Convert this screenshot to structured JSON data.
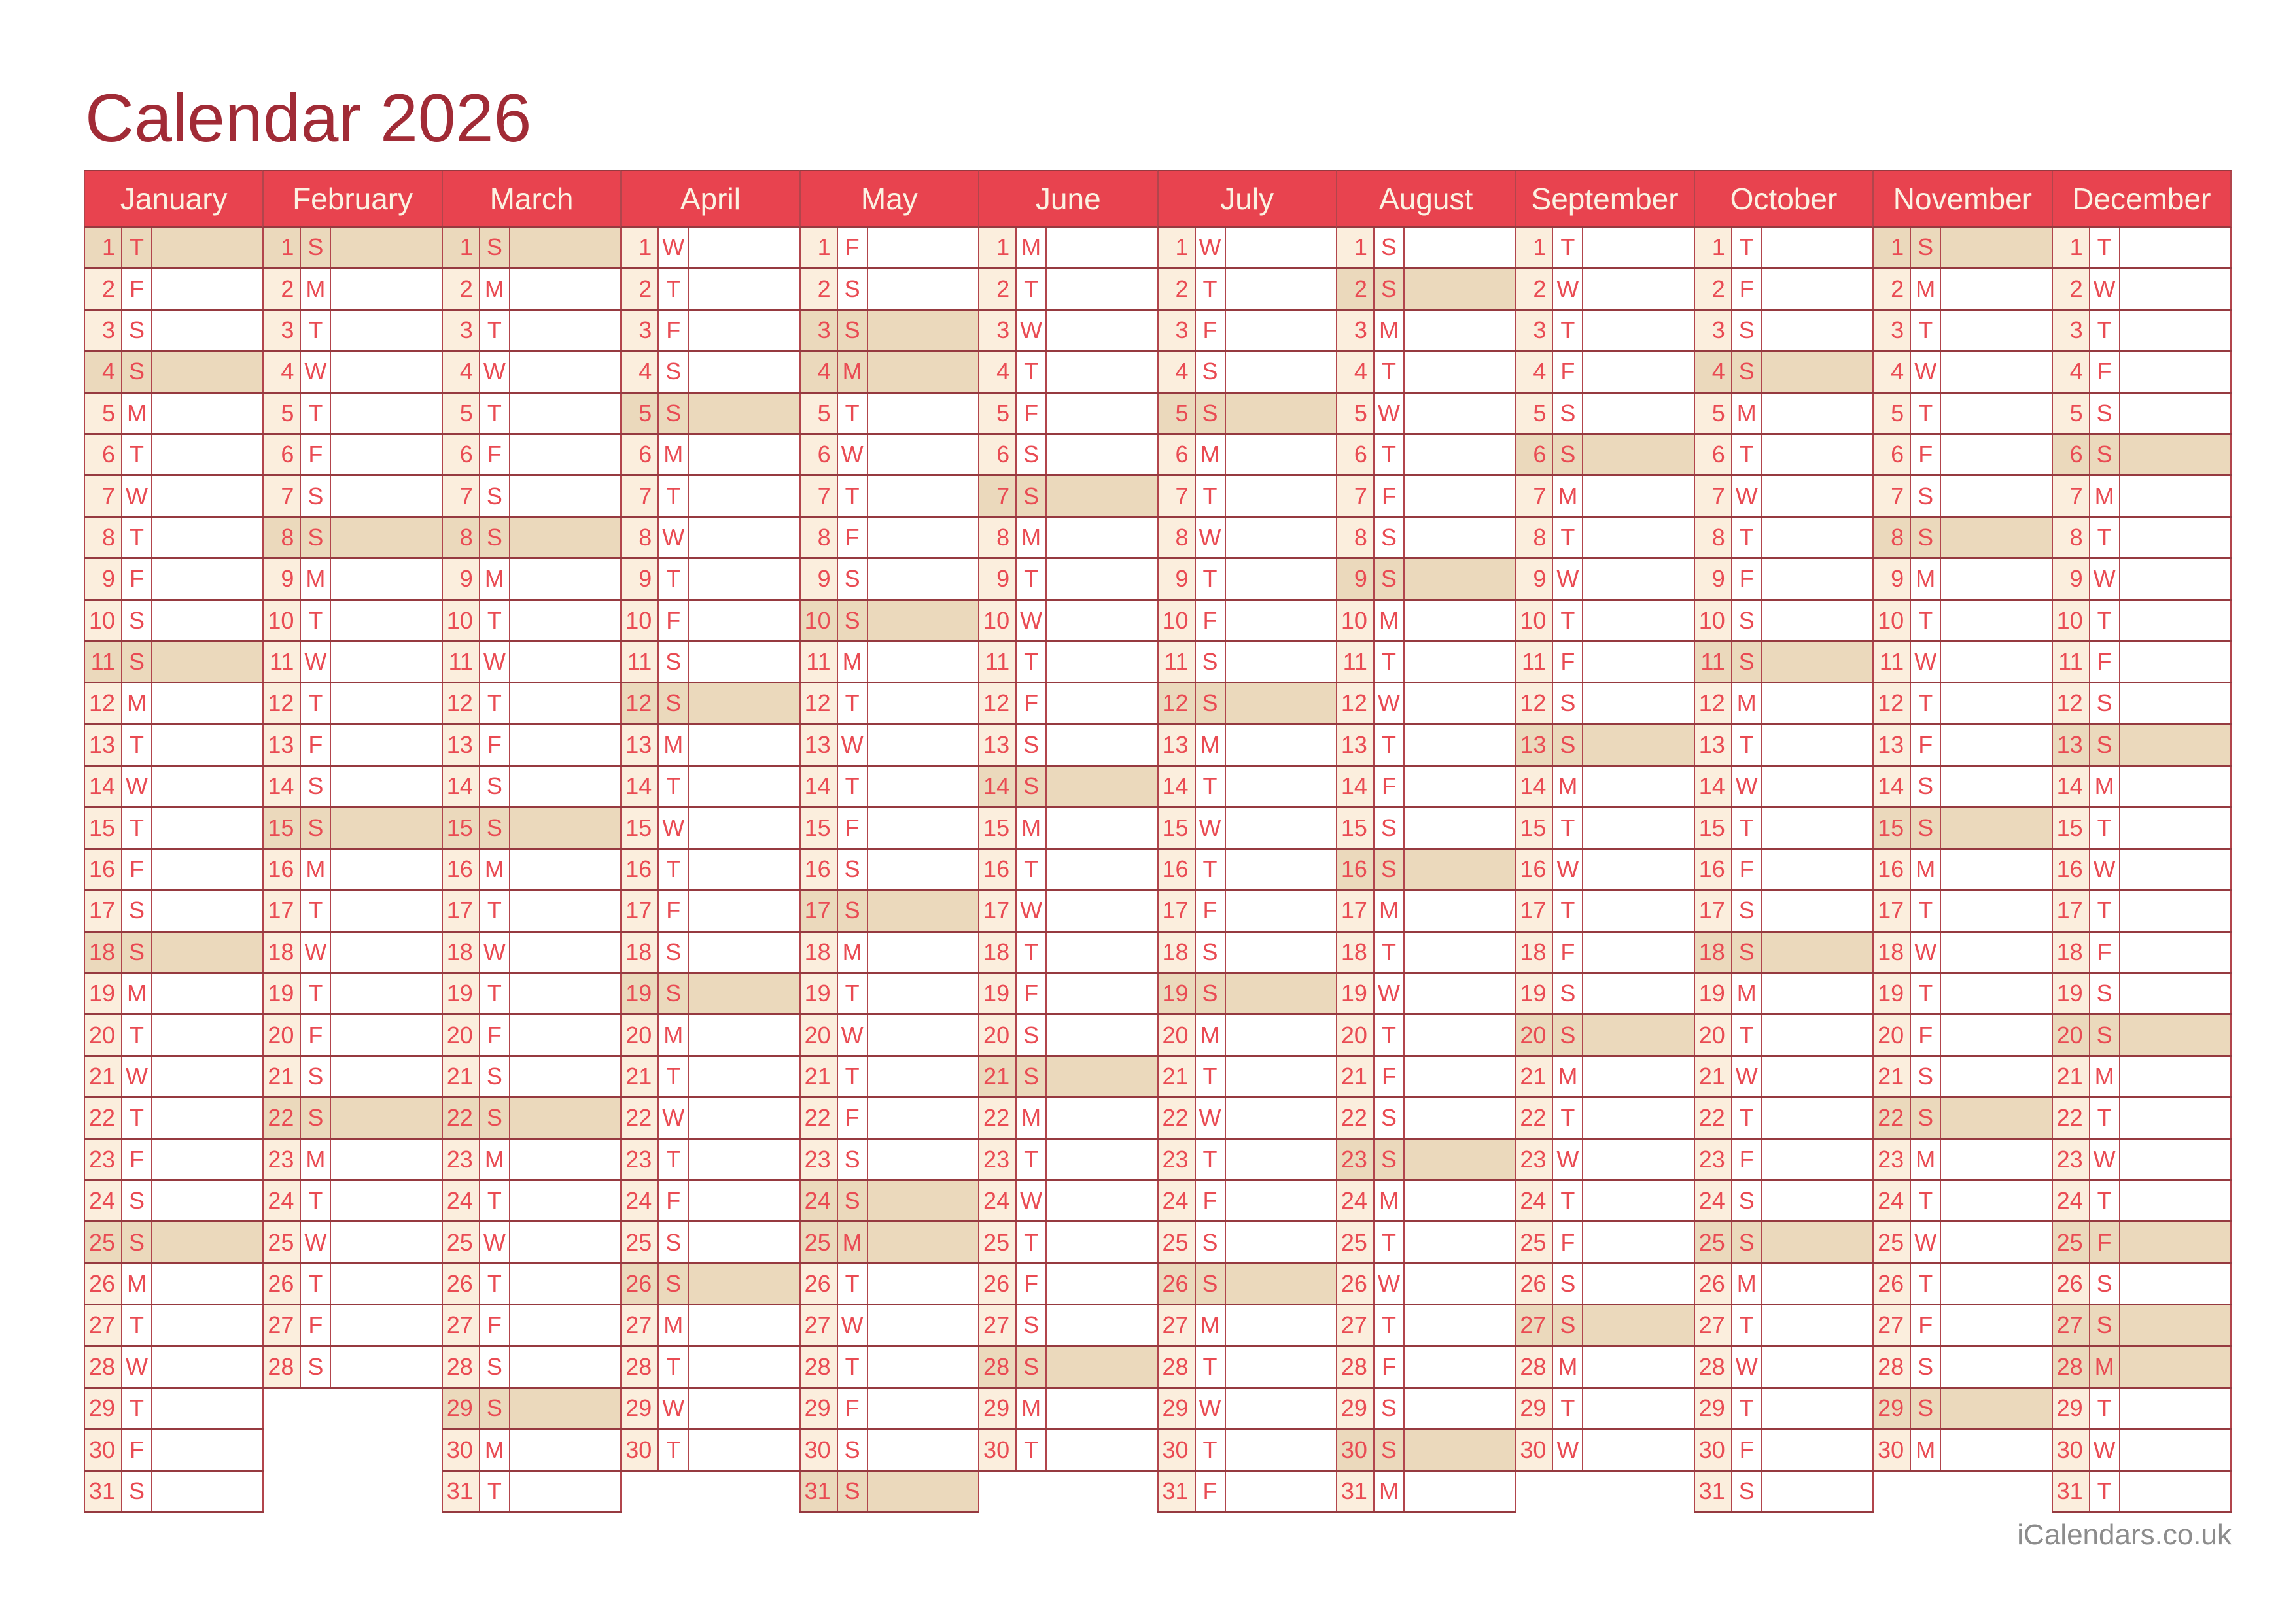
{
  "page": {
    "title": "Calendar 2026",
    "footer": "iCalendars.co.uk"
  },
  "calendar": {
    "year": 2026,
    "weekday_cycle": "MTWTFSS",
    "months": [
      {
        "name": "January",
        "days": 31,
        "letters": "TFSSMTWTFSSMTWTFSSMTWTFSSMTWTFS",
        "highlighted": [
          1,
          4,
          11,
          18,
          25
        ]
      },
      {
        "name": "February",
        "days": 28,
        "letters": "SMTWTFSSMTWTFSSMTWTFSSMTWTFS",
        "highlighted": [
          1,
          8,
          15,
          22
        ]
      },
      {
        "name": "March",
        "days": 31,
        "letters": "SMTWTFSSMTWTFSSMTWTFSSMTWTFSSMT",
        "highlighted": [
          1,
          8,
          15,
          22,
          29
        ]
      },
      {
        "name": "April",
        "days": 30,
        "letters": "WTFSSMTWTFSSMTWTFSSMTWTFSSMTWT",
        "highlighted": [
          5,
          12,
          19,
          26
        ]
      },
      {
        "name": "May",
        "days": 31,
        "letters": "FSSMTWTFSSMTWTFSSMTWTFSSMTWTFSS",
        "highlighted": [
          3,
          4,
          10,
          17,
          24,
          25,
          31
        ]
      },
      {
        "name": "June",
        "days": 30,
        "letters": "MTWTFSSMTWTFSSMTWTFSSMTWTFSSMT",
        "highlighted": [
          7,
          14,
          21,
          28
        ]
      },
      {
        "name": "July",
        "days": 31,
        "letters": "WTFSSMTWTFSSMTWTFSSMTWTFSSMTWTF",
        "highlighted": [
          5,
          12,
          19,
          26
        ]
      },
      {
        "name": "August",
        "days": 31,
        "letters": "SSMTWTFSSMTWTFSSMTWTFSSMTWTFSSM",
        "highlighted": [
          2,
          9,
          16,
          23,
          30
        ]
      },
      {
        "name": "September",
        "days": 30,
        "letters": "TWTFSSMTWTFSSMTWTFSSMTWTFSSMTW",
        "highlighted": [
          6,
          13,
          20,
          27
        ]
      },
      {
        "name": "October",
        "days": 31,
        "letters": "TFSSMTWTFSSMTWTFSSMTWTFSSMTWTFS",
        "highlighted": [
          4,
          11,
          18,
          25
        ]
      },
      {
        "name": "November",
        "days": 30,
        "letters": "SMTWTFSSMTWTFSSMTWTFSSMTWTFSSM",
        "highlighted": [
          1,
          8,
          15,
          22,
          29
        ]
      },
      {
        "name": "December",
        "days": 31,
        "letters": "TWTFSSMTWTFSSMTWTFSSMTWTFSSMTWT",
        "highlighted": [
          6,
          13,
          20,
          25,
          27,
          28
        ]
      }
    ]
  },
  "colors": {
    "page_bg": "#FFFFFF",
    "title_text": "#A12B36",
    "header_bg": "#E8434F",
    "header_text": "#FBF2E2",
    "day_text": "#E94B53",
    "number_cell_bg": "#FBEEDD",
    "weekend_highlight_bg": "#EBD9BC",
    "border_dark": "#963A40",
    "border_light": "#B2454C",
    "credit_text": "#8C8C8C"
  }
}
